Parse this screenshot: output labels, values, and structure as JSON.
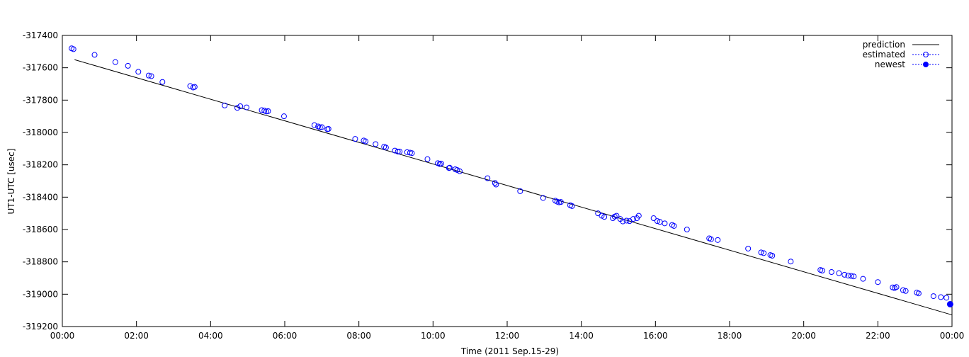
{
  "chart_data": {
    "type": "scatter",
    "title": "",
    "xlabel": "Time (2011 Sep.15-29)",
    "ylabel": "UT1-UTC [usec]",
    "xlim": [
      0,
      24
    ],
    "ylim": [
      -319200,
      -317400
    ],
    "x_unit": "hours",
    "x_ticks": [
      "00:00",
      "02:00",
      "04:00",
      "06:00",
      "08:00",
      "10:00",
      "12:00",
      "14:00",
      "16:00",
      "18:00",
      "20:00",
      "22:00",
      "00:00"
    ],
    "y_ticks": [
      "-317400",
      "-317600",
      "-317800",
      "-318000",
      "-318200",
      "-318400",
      "-318600",
      "-318800",
      "-319000",
      "-319200"
    ],
    "grid": false,
    "legend_position": "top-right",
    "colors": {
      "prediction": "#000000",
      "estimated": "#0000ff",
      "newest": "#0000ff"
    },
    "series": [
      {
        "name": "prediction",
        "style": "line",
        "points": [
          [
            0.33,
            -317550
          ],
          [
            24.0,
            -319128
          ]
        ]
      },
      {
        "name": "estimated",
        "style": "open-circle",
        "points": [
          [
            0.25,
            -317480
          ],
          [
            0.3,
            -317485
          ],
          [
            0.87,
            -317520
          ],
          [
            1.43,
            -317565
          ],
          [
            1.77,
            -317588
          ],
          [
            2.05,
            -317625
          ],
          [
            2.33,
            -317648
          ],
          [
            2.4,
            -317652
          ],
          [
            2.7,
            -317688
          ],
          [
            3.45,
            -317713
          ],
          [
            3.53,
            -317722
          ],
          [
            3.57,
            -317718
          ],
          [
            4.38,
            -317833
          ],
          [
            4.72,
            -317848
          ],
          [
            4.8,
            -317838
          ],
          [
            4.97,
            -317845
          ],
          [
            5.38,
            -317862
          ],
          [
            5.45,
            -317865
          ],
          [
            5.5,
            -317870
          ],
          [
            5.55,
            -317868
          ],
          [
            5.98,
            -317900
          ],
          [
            6.8,
            -317955
          ],
          [
            6.9,
            -317963
          ],
          [
            6.95,
            -317968
          ],
          [
            7.0,
            -317967
          ],
          [
            7.15,
            -317980
          ],
          [
            7.18,
            -317978
          ],
          [
            7.9,
            -318040
          ],
          [
            8.13,
            -318050
          ],
          [
            8.18,
            -318055
          ],
          [
            8.45,
            -318072
          ],
          [
            8.68,
            -318088
          ],
          [
            8.73,
            -318093
          ],
          [
            8.97,
            -318112
          ],
          [
            9.05,
            -318118
          ],
          [
            9.1,
            -318118
          ],
          [
            9.3,
            -318122
          ],
          [
            9.38,
            -318125
          ],
          [
            9.43,
            -318128
          ],
          [
            9.85,
            -318165
          ],
          [
            10.13,
            -318190
          ],
          [
            10.18,
            -318195
          ],
          [
            10.22,
            -318192
          ],
          [
            10.43,
            -318220
          ],
          [
            10.45,
            -318218
          ],
          [
            10.6,
            -318228
          ],
          [
            10.65,
            -318232
          ],
          [
            10.72,
            -318240
          ],
          [
            11.47,
            -318283
          ],
          [
            11.67,
            -318312
          ],
          [
            11.7,
            -318322
          ],
          [
            12.35,
            -318363
          ],
          [
            12.97,
            -318405
          ],
          [
            13.3,
            -318422
          ],
          [
            13.35,
            -318428
          ],
          [
            13.4,
            -318432
          ],
          [
            13.45,
            -318430
          ],
          [
            13.7,
            -318450
          ],
          [
            13.75,
            -318455
          ],
          [
            14.45,
            -318500
          ],
          [
            14.55,
            -318515
          ],
          [
            14.62,
            -318522
          ],
          [
            14.85,
            -318530
          ],
          [
            14.9,
            -318520
          ],
          [
            14.95,
            -318515
          ],
          [
            15.05,
            -318535
          ],
          [
            15.12,
            -318550
          ],
          [
            15.22,
            -318545
          ],
          [
            15.3,
            -318548
          ],
          [
            15.4,
            -318535
          ],
          [
            15.5,
            -318530
          ],
          [
            15.55,
            -318515
          ],
          [
            15.95,
            -318530
          ],
          [
            16.05,
            -318548
          ],
          [
            16.12,
            -318553
          ],
          [
            16.25,
            -318562
          ],
          [
            16.45,
            -318572
          ],
          [
            16.5,
            -318578
          ],
          [
            16.85,
            -318600
          ],
          [
            17.45,
            -318655
          ],
          [
            17.5,
            -318660
          ],
          [
            17.68,
            -318665
          ],
          [
            18.5,
            -318718
          ],
          [
            18.85,
            -318742
          ],
          [
            18.92,
            -318746
          ],
          [
            19.1,
            -318758
          ],
          [
            19.15,
            -318762
          ],
          [
            19.65,
            -318798
          ],
          [
            20.45,
            -318850
          ],
          [
            20.5,
            -318854
          ],
          [
            20.75,
            -318863
          ],
          [
            20.95,
            -318870
          ],
          [
            21.1,
            -318880
          ],
          [
            21.2,
            -318885
          ],
          [
            21.28,
            -318887
          ],
          [
            21.35,
            -318890
          ],
          [
            21.6,
            -318905
          ],
          [
            22.0,
            -318925
          ],
          [
            22.4,
            -318958
          ],
          [
            22.45,
            -318962
          ],
          [
            22.5,
            -318956
          ],
          [
            22.68,
            -318975
          ],
          [
            22.75,
            -318980
          ],
          [
            23.05,
            -318990
          ],
          [
            23.1,
            -318995
          ],
          [
            23.5,
            -319012
          ],
          [
            23.7,
            -319018
          ],
          [
            23.85,
            -319022
          ]
        ]
      },
      {
        "name": "newest",
        "style": "filled-circle",
        "points": [
          [
            23.95,
            -319062
          ]
        ]
      }
    ]
  }
}
